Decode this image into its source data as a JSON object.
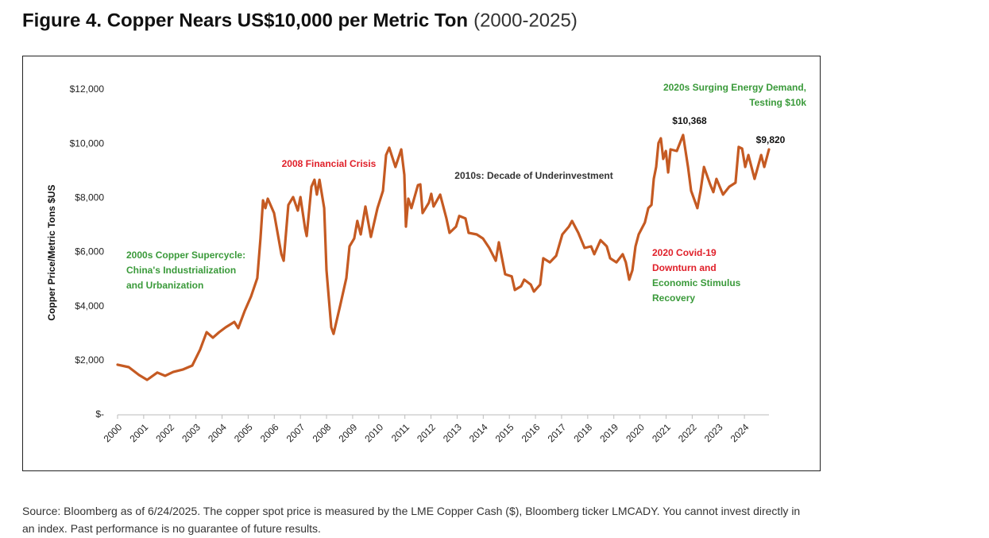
{
  "chart_data": {
    "type": "line",
    "title": "Figure 4. Copper Nears US$10,000 per Metric Ton",
    "subtitle": "(2000-2025)",
    "y_label": "Copper Price/Metric Tons $US",
    "source": "Source: Bloomberg as of 6/24/2025. The copper spot price is measured by the LME Copper Cash ($), Bloomberg ticker LMCADY. You cannot invest directly in an index. Past performance is no guarantee of future results.",
    "xlim": [
      2000,
      2025
    ],
    "xticks": [
      2000,
      2001,
      2002,
      2003,
      2004,
      2005,
      2006,
      2007,
      2008,
      2009,
      2010,
      2011,
      2012,
      2013,
      2014,
      2015,
      2016,
      2017,
      2018,
      2019,
      2020,
      2021,
      2022,
      2023,
      2024
    ],
    "ylim": [
      0,
      12000
    ],
    "yticks": [
      {
        "value": 0,
        "label": "$-"
      },
      {
        "value": 2000,
        "label": "$2,000"
      },
      {
        "value": 4000,
        "label": "$4,000"
      },
      {
        "value": 6000,
        "label": "$6,000"
      },
      {
        "value": 8000,
        "label": "$8,000"
      },
      {
        "value": 10000,
        "label": "$10,000"
      },
      {
        "value": 12000,
        "label": "$12,000"
      }
    ],
    "grid": false,
    "series": [
      {
        "name": "Copper",
        "color": "#c55a22",
        "x": [
          2000.0,
          2000.43,
          2000.82,
          2001.13,
          2001.52,
          2001.82,
          2002.13,
          2002.49,
          2002.86,
          2003.16,
          2003.41,
          2003.65,
          2003.89,
          2004.14,
          2004.47,
          2004.62,
          2004.87,
          2005.11,
          2005.35,
          2005.47,
          2005.57,
          2005.66,
          2005.75,
          2005.99,
          2006.27,
          2006.36,
          2006.54,
          2006.72,
          2006.9,
          2007.0,
          2007.18,
          2007.24,
          2007.42,
          2007.54,
          2007.63,
          2007.73,
          2007.91,
          2008.0,
          2008.18,
          2008.27,
          2008.52,
          2008.76,
          2008.88,
          2009.06,
          2009.18,
          2009.31,
          2009.49,
          2009.7,
          2009.95,
          2010.16,
          2010.28,
          2010.4,
          2010.64,
          2010.86,
          2010.98,
          2011.04,
          2011.13,
          2011.25,
          2011.5,
          2011.59,
          2011.68,
          2011.92,
          2012.01,
          2012.1,
          2012.35,
          2012.59,
          2012.71,
          2012.96,
          2013.08,
          2013.32,
          2013.44,
          2013.75,
          2013.99,
          2014.23,
          2014.48,
          2014.6,
          2014.84,
          2015.09,
          2015.21,
          2015.45,
          2015.57,
          2015.82,
          2015.94,
          2016.18,
          2016.3,
          2016.55,
          2016.79,
          2017.03,
          2017.28,
          2017.4,
          2017.64,
          2017.88,
          2018.13,
          2018.25,
          2018.49,
          2018.73,
          2018.86,
          2019.1,
          2019.34,
          2019.46,
          2019.59,
          2019.71,
          2019.83,
          2019.95,
          2020.19,
          2020.32,
          2020.44,
          2020.53,
          2020.62,
          2020.71,
          2020.8,
          2020.89,
          2020.99,
          2021.08,
          2021.17,
          2021.41,
          2021.65,
          2021.84,
          2021.96,
          2022.2,
          2022.32,
          2022.45,
          2022.69,
          2022.81,
          2022.93,
          2023.18,
          2023.42,
          2023.66,
          2023.78,
          2023.91,
          2024.03,
          2024.15,
          2024.39,
          2024.64,
          2024.76,
          2024.88,
          2024.94
        ],
        "values": [
          1850,
          1760,
          1470,
          1290,
          1560,
          1440,
          1580,
          1670,
          1820,
          2410,
          3050,
          2850,
          3050,
          3230,
          3430,
          3200,
          3840,
          4370,
          5050,
          6510,
          7920,
          7630,
          7980,
          7450,
          5930,
          5690,
          7750,
          8040,
          7540,
          8040,
          6870,
          6600,
          8420,
          8680,
          8130,
          8680,
          7630,
          5340,
          3230,
          2990,
          4020,
          5050,
          6220,
          6510,
          7160,
          6660,
          7690,
          6570,
          7630,
          8270,
          9590,
          9860,
          9150,
          9800,
          8860,
          6950,
          7980,
          7630,
          8480,
          8510,
          7450,
          7830,
          8160,
          7690,
          8130,
          7250,
          6720,
          6950,
          7340,
          7250,
          6720,
          6660,
          6510,
          6160,
          5690,
          6370,
          5190,
          5110,
          4610,
          4750,
          4990,
          4810,
          4550,
          4810,
          5780,
          5630,
          5870,
          6660,
          6950,
          7160,
          6720,
          6160,
          6220,
          5930,
          6450,
          6220,
          5780,
          5630,
          5930,
          5630,
          4990,
          5340,
          6220,
          6660,
          7100,
          7630,
          7750,
          8710,
          9150,
          10030,
          10210,
          9450,
          9740,
          8950,
          9800,
          9740,
          10330,
          9150,
          8270,
          7630,
          8270,
          9150,
          8510,
          8220,
          8710,
          8130,
          8420,
          8570,
          9890,
          9830,
          9150,
          9590,
          8710,
          9590,
          9150,
          9590,
          9800
        ]
      }
    ],
    "annotations": [
      {
        "lines": [
          "2000s Copper Supercycle:",
          "China's Industrialization",
          "and Urbanization"
        ],
        "color": "#3a9a3a"
      },
      {
        "lines": [
          "2008 Financial Crisis"
        ],
        "color": "#e0202a"
      },
      {
        "lines": [
          "2010s: Decade of Underinvestment"
        ],
        "color": "#333333"
      },
      {
        "lines": [
          "2020 Covid-19",
          "Downturn and"
        ],
        "color": "#e0202a"
      },
      {
        "lines": [
          "Economic Stimulus",
          "Recovery"
        ],
        "color": "#3a9a3a"
      },
      {
        "lines": [
          "2020s Surging Energy Demand,",
          "Testing $10k"
        ],
        "color": "#3a9a3a"
      },
      {
        "lines": [
          "$10,368"
        ],
        "color": "#111111"
      },
      {
        "lines": [
          "$9,820"
        ],
        "color": "#111111"
      }
    ]
  }
}
